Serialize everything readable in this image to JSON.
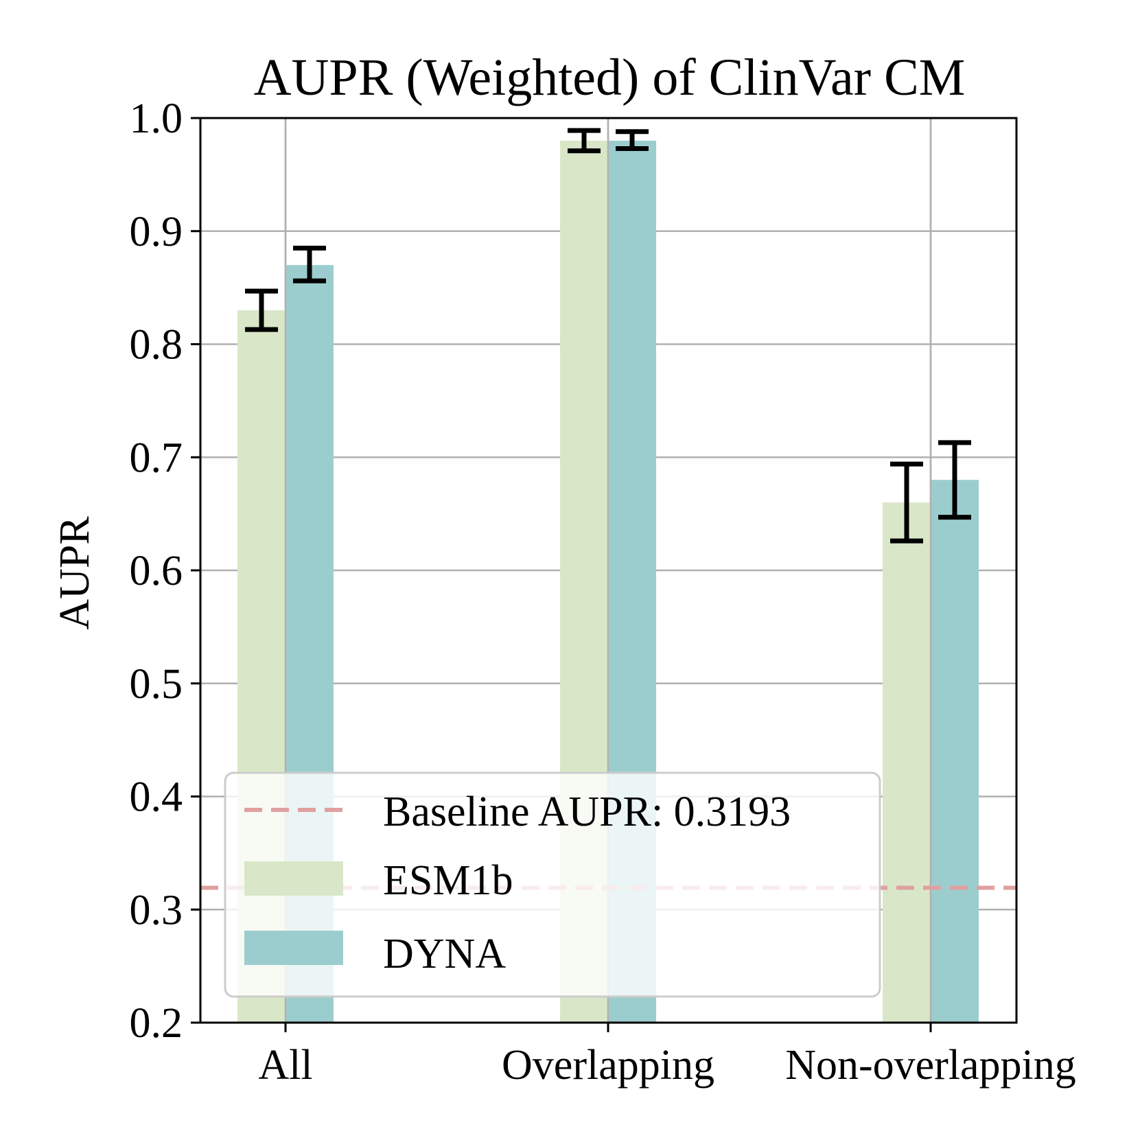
{
  "chart_data": {
    "type": "bar",
    "title": "AUPR (Weighted) of ClinVar CM",
    "xlabel": "",
    "ylabel": "AUPR",
    "ylim": [
      0.2,
      1.0
    ],
    "yticks": [
      0.2,
      0.3,
      0.4,
      0.5,
      0.6,
      0.7,
      0.8,
      0.9,
      1.0
    ],
    "ytick_labels": [
      "0.2",
      "0.3",
      "0.4",
      "0.5",
      "0.6",
      "0.7",
      "0.8",
      "0.9",
      "1.0"
    ],
    "categories": [
      "All",
      "Overlapping",
      "Non-overlapping"
    ],
    "grid": true,
    "legend_position": "lower-left",
    "series": [
      {
        "name": "ESM1b",
        "color": "#d9e7c8",
        "values": [
          0.83,
          0.98,
          0.66
        ],
        "error_low": [
          0.813,
          0.971,
          0.626
        ],
        "error_high": [
          0.847,
          0.989,
          0.694
        ]
      },
      {
        "name": "DYNA",
        "color": "#9ccdce",
        "values": [
          0.87,
          0.98,
          0.68
        ],
        "error_low": [
          0.856,
          0.973,
          0.647
        ],
        "error_high": [
          0.885,
          0.988,
          0.713
        ]
      }
    ],
    "baseline": {
      "label": "Baseline AUPR: 0.3193",
      "value": 0.3193,
      "color": "#e0a0a0",
      "style": "dashed"
    }
  }
}
